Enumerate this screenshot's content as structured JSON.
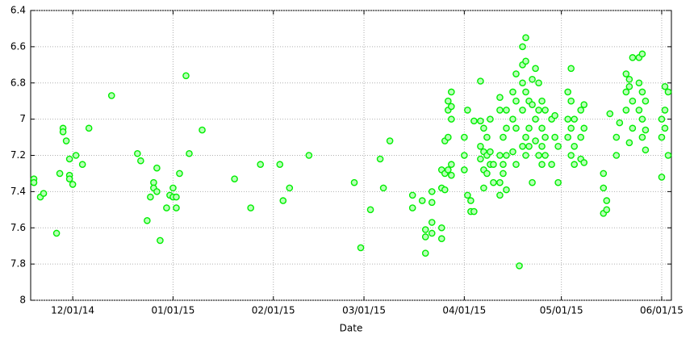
{
  "chart_data": {
    "type": "scatter",
    "x_label": "Date",
    "y_inverted": true,
    "grid": true,
    "xlim": [
      "11/18/14",
      "06/04/15"
    ],
    "xticks": [
      "12/01/14",
      "01/01/15",
      "02/01/15",
      "03/01/15",
      "04/01/15",
      "05/01/15",
      "06/01/15"
    ],
    "ylim": [
      6.4,
      8
    ],
    "yticks": [
      6.4,
      6.6,
      6.8,
      7,
      7.2,
      7.4,
      7.6,
      7.8,
      8
    ],
    "series": [
      {
        "color": "#00ee00",
        "x": [
          "11/19/14",
          "11/19/14",
          "11/21/14",
          "11/22/14",
          "11/26/14",
          "11/27/14",
          "11/28/14",
          "11/28/14",
          "11/29/14",
          "11/30/14",
          "11/30/14",
          "11/30/14",
          "12/01/14",
          "12/02/14",
          "12/04/14",
          "12/06/14",
          "12/13/14",
          "12/21/14",
          "12/22/14",
          "12/24/14",
          "12/25/14",
          "12/26/14",
          "12/26/14",
          "12/27/14",
          "12/27/14",
          "12/28/14",
          "12/30/14",
          "12/31/14",
          "01/01/15",
          "01/01/15",
          "01/02/15",
          "01/02/15",
          "01/03/15",
          "01/05/15",
          "01/06/15",
          "01/10/15",
          "01/20/15",
          "01/25/15",
          "01/28/15",
          "02/03/15",
          "02/04/15",
          "02/06/15",
          "02/12/15",
          "02/26/15",
          "02/28/15",
          "03/03/15",
          "03/06/15",
          "03/07/15",
          "03/09/15",
          "03/16/15",
          "03/16/15",
          "03/19/15",
          "03/20/15",
          "03/20/15",
          "03/20/15",
          "03/22/15",
          "03/22/15",
          "03/22/15",
          "03/22/15",
          "03/25/15",
          "03/25/15",
          "03/25/15",
          "03/25/15",
          "03/26/15",
          "03/26/15",
          "03/26/15",
          "03/27/15",
          "03/27/15",
          "03/27/15",
          "03/27/15",
          "03/28/15",
          "03/28/15",
          "03/28/15",
          "03/28/15",
          "03/28/15",
          "04/01/15",
          "04/01/15",
          "04/01/15",
          "04/02/15",
          "04/02/15",
          "04/03/15",
          "04/03/15",
          "04/04/15",
          "04/04/15",
          "04/06/15",
          "04/06/15",
          "04/06/15",
          "04/06/15",
          "04/07/15",
          "04/07/15",
          "04/07/15",
          "04/07/15",
          "04/08/15",
          "04/08/15",
          "04/08/15",
          "04/09/15",
          "04/09/15",
          "04/09/15",
          "04/10/15",
          "04/10/15",
          "04/12/15",
          "04/12/15",
          "04/12/15",
          "04/12/15",
          "04/12/15",
          "04/13/15",
          "04/13/15",
          "04/13/15",
          "04/14/15",
          "04/14/15",
          "04/14/15",
          "04/14/15",
          "04/16/15",
          "04/16/15",
          "04/16/15",
          "04/17/15",
          "04/17/15",
          "04/17/15",
          "04/17/15",
          "04/18/15",
          "04/19/15",
          "04/19/15",
          "04/19/15",
          "04/19/15",
          "04/19/15",
          "04/20/15",
          "04/20/15",
          "04/20/15",
          "04/20/15",
          "04/20/15",
          "04/21/15",
          "04/21/15",
          "04/21/15",
          "04/22/15",
          "04/22/15",
          "04/22/15",
          "04/23/15",
          "04/23/15",
          "04/23/15",
          "04/24/15",
          "04/24/15",
          "04/24/15",
          "04/25/15",
          "04/25/15",
          "04/25/15",
          "04/25/15",
          "04/26/15",
          "04/26/15",
          "04/26/15",
          "04/28/15",
          "04/28/15",
          "04/29/15",
          "04/29/15",
          "04/30/15",
          "04/30/15",
          "05/03/15",
          "05/03/15",
          "05/03/15",
          "05/04/15",
          "05/04/15",
          "05/04/15",
          "05/04/15",
          "05/05/15",
          "05/05/15",
          "05/05/15",
          "05/07/15",
          "05/07/15",
          "05/07/15",
          "05/08/15",
          "05/08/15",
          "05/08/15",
          "05/14/15",
          "05/14/15",
          "05/14/15",
          "05/15/15",
          "05/15/15",
          "05/16/15",
          "05/18/15",
          "05/18/15",
          "05/19/15",
          "05/21/15",
          "05/21/15",
          "05/21/15",
          "05/22/15",
          "05/22/15",
          "05/22/15",
          "05/23/15",
          "05/23/15",
          "05/23/15",
          "05/25/15",
          "05/25/15",
          "05/25/15",
          "05/26/15",
          "05/26/15",
          "05/26/15",
          "05/26/15",
          "05/27/15",
          "05/27/15",
          "05/27/15",
          "06/01/15",
          "06/01/15",
          "06/01/15",
          "06/02/15",
          "06/02/15",
          "06/02/15",
          "06/03/15",
          "06/03/15"
        ],
        "values": [
          7.33,
          7.35,
          7.43,
          7.41,
          7.63,
          7.3,
          7.05,
          7.07,
          7.12,
          7.31,
          7.33,
          7.22,
          7.36,
          7.2,
          7.25,
          7.05,
          6.87,
          7.19,
          7.23,
          7.56,
          7.43,
          7.35,
          7.38,
          7.27,
          7.4,
          7.67,
          7.49,
          7.42,
          7.38,
          7.43,
          7.49,
          7.43,
          7.3,
          6.76,
          7.19,
          7.06,
          7.33,
          7.49,
          7.25,
          7.25,
          7.45,
          7.38,
          7.2,
          7.35,
          7.71,
          7.5,
          7.22,
          7.38,
          7.12,
          7.42,
          7.49,
          7.45,
          7.61,
          7.65,
          7.74,
          7.4,
          7.46,
          7.57,
          7.63,
          7.28,
          7.38,
          7.6,
          7.66,
          7.12,
          7.3,
          7.39,
          6.9,
          6.95,
          7.1,
          7.28,
          6.85,
          6.93,
          7.0,
          7.25,
          7.31,
          7.1,
          7.2,
          7.28,
          6.95,
          7.42,
          7.45,
          7.51,
          7.01,
          7.51,
          6.79,
          7.01,
          7.15,
          7.22,
          7.05,
          7.18,
          7.28,
          7.38,
          7.1,
          7.2,
          7.3,
          7.0,
          7.18,
          7.25,
          7.25,
          7.35,
          6.88,
          6.95,
          7.2,
          7.35,
          7.42,
          7.1,
          7.25,
          7.3,
          6.95,
          7.05,
          7.2,
          7.39,
          6.85,
          7.0,
          7.18,
          6.75,
          6.9,
          7.05,
          7.25,
          7.81,
          6.6,
          6.7,
          6.8,
          6.95,
          7.15,
          6.55,
          6.68,
          6.85,
          7.1,
          7.2,
          6.9,
          7.05,
          7.15,
          6.78,
          6.92,
          7.35,
          6.72,
          7.0,
          7.12,
          6.8,
          6.95,
          7.2,
          6.9,
          7.05,
          7.15,
          7.25,
          6.95,
          7.1,
          7.2,
          7.0,
          7.25,
          6.98,
          7.1,
          7.15,
          7.35,
          6.85,
          7.0,
          7.1,
          6.72,
          6.9,
          7.05,
          7.2,
          7.0,
          7.15,
          7.25,
          6.95,
          7.1,
          7.22,
          6.92,
          7.05,
          7.24,
          7.3,
          7.38,
          7.52,
          7.45,
          7.5,
          6.97,
          7.1,
          7.2,
          7.02,
          6.75,
          6.85,
          6.95,
          6.78,
          6.82,
          7.13,
          6.66,
          6.9,
          7.05,
          6.66,
          6.8,
          6.95,
          6.64,
          6.85,
          7.0,
          7.1,
          6.9,
          7.06,
          7.17,
          7.32,
          7.0,
          7.1,
          6.82,
          6.95,
          7.05,
          6.85,
          7.2
        ]
      }
    ]
  }
}
